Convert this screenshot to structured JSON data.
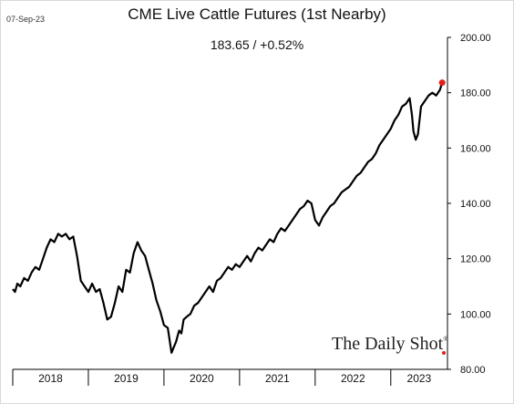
{
  "header": {
    "date": "07-Sep-23",
    "title": "CME Live Cattle Futures (1st Nearby)",
    "subtitle": "183.65  /  +0.52%",
    "brand": "The Daily Shot",
    "brand_mark": "®"
  },
  "chart_data": {
    "type": "line",
    "title": "CME Live Cattle Futures (1st Nearby)",
    "xlabel": "",
    "ylabel": "",
    "ylim": [
      80,
      200
    ],
    "yticks": [
      80,
      100,
      120,
      140,
      160,
      180,
      200
    ],
    "ytick_labels": [
      "80.00",
      "100.00",
      "120.00",
      "140.00",
      "160.00",
      "180.00",
      "200.00"
    ],
    "y_axis_side": "right",
    "xlim": [
      2018.0,
      2023.75
    ],
    "x_categories": [
      "2018",
      "2019",
      "2020",
      "2021",
      "2022",
      "2023"
    ],
    "grid": false,
    "last_value": 183.65,
    "last_change_pct": 0.52,
    "series": [
      {
        "color": "#000000",
        "highlight_color": "#e0201b",
        "x": [
          2018.0,
          2018.03,
          2018.06,
          2018.1,
          2018.15,
          2018.2,
          2018.25,
          2018.3,
          2018.35,
          2018.4,
          2018.45,
          2018.5,
          2018.55,
          2018.6,
          2018.65,
          2018.7,
          2018.75,
          2018.8,
          2018.85,
          2018.9,
          2018.95,
          2019.0,
          2019.05,
          2019.1,
          2019.15,
          2019.2,
          2019.25,
          2019.3,
          2019.35,
          2019.4,
          2019.45,
          2019.5,
          2019.55,
          2019.6,
          2019.65,
          2019.7,
          2019.75,
          2019.8,
          2019.85,
          2019.9,
          2019.95,
          2020.0,
          2020.05,
          2020.1,
          2020.13,
          2020.16,
          2020.2,
          2020.23,
          2020.26,
          2020.3,
          2020.35,
          2020.4,
          2020.45,
          2020.5,
          2020.55,
          2020.6,
          2020.65,
          2020.7,
          2020.75,
          2020.8,
          2020.85,
          2020.9,
          2020.95,
          2021.0,
          2021.05,
          2021.1,
          2021.15,
          2021.2,
          2021.25,
          2021.3,
          2021.35,
          2021.4,
          2021.45,
          2021.5,
          2021.55,
          2021.6,
          2021.65,
          2021.7,
          2021.75,
          2021.8,
          2021.85,
          2021.9,
          2021.95,
          2022.0,
          2022.05,
          2022.1,
          2022.15,
          2022.2,
          2022.25,
          2022.3,
          2022.35,
          2022.4,
          2022.45,
          2022.5,
          2022.55,
          2022.6,
          2022.65,
          2022.7,
          2022.75,
          2022.8,
          2022.85,
          2022.9,
          2022.95,
          2023.0,
          2023.05,
          2023.1,
          2023.15,
          2023.2,
          2023.25,
          2023.28,
          2023.3,
          2023.33,
          2023.36,
          2023.4,
          2023.45,
          2023.5,
          2023.55,
          2023.6,
          2023.65,
          2023.68
        ],
        "values": [
          109,
          108,
          111,
          110,
          113,
          112,
          115,
          117,
          116,
          120,
          124,
          127,
          126,
          129,
          128,
          129,
          127,
          128,
          121,
          112,
          110,
          108,
          111,
          108,
          109,
          104,
          98,
          99,
          104,
          110,
          108,
          116,
          115,
          122,
          126,
          123,
          121,
          116,
          111,
          105,
          101,
          96,
          95,
          86,
          88,
          90,
          94,
          93,
          98,
          99,
          100,
          103,
          104,
          106,
          108,
          110,
          108,
          112,
          113,
          115,
          117,
          116,
          118,
          117,
          119,
          121,
          119,
          122,
          124,
          123,
          125,
          127,
          126,
          129,
          131,
          130,
          132,
          134,
          136,
          138,
          139,
          141,
          140,
          134,
          132,
          135,
          137,
          139,
          140,
          142,
          144,
          145,
          146,
          148,
          150,
          151,
          153,
          155,
          156,
          158,
          161,
          163,
          165,
          167,
          170,
          172,
          175,
          176,
          178,
          172,
          166,
          163,
          165,
          175,
          177,
          179,
          180,
          179,
          181,
          183.65
        ]
      }
    ]
  }
}
